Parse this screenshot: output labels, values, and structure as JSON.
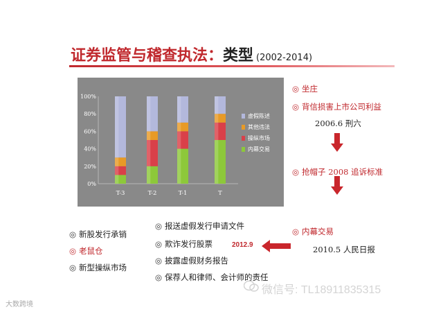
{
  "title": {
    "main": "证券监管与稽查执法：",
    "sub": "类型",
    "years": "(2002-2014)"
  },
  "colors": {
    "accent": "#c0282d",
    "chart_bg": "#898989",
    "series": [
      "#8dc83a",
      "#d94049",
      "#e89a26",
      "#b3b8dc"
    ]
  },
  "chart_data": {
    "type": "bar",
    "stacked": true,
    "categories": [
      "T-3",
      "T-2",
      "T-1",
      "T"
    ],
    "yticks": [
      "0%",
      "20%",
      "40%",
      "60%",
      "80%",
      "100%"
    ],
    "ylim": [
      0,
      100
    ],
    "legend_position": "right",
    "series": [
      {
        "name": "内幕交易",
        "values": [
          10,
          20,
          40,
          50
        ]
      },
      {
        "name": "操纵市场",
        "values": [
          10,
          30,
          20,
          20
        ]
      },
      {
        "name": "其他违法",
        "values": [
          10,
          10,
          10,
          10
        ]
      },
      {
        "name": "虚假陈述",
        "values": [
          70,
          40,
          30,
          20
        ]
      }
    ],
    "legend_order": [
      "虚假陈述",
      "其他违法",
      "操纵市场",
      "内幕交易"
    ]
  },
  "right_column": {
    "item1": "坐庄",
    "item2": "背信损害上市公司利益",
    "note1": "2006.6  刑六",
    "item3": "抢帽子 2008 追诉标准",
    "item4": "内幕交易",
    "note2": "2010.5 人民日报"
  },
  "middle_column": [
    "报送虚假发行申请文件",
    "欺诈发行股票",
    "披露虚假财务报告",
    "保荐人和律师、会计师的责任"
  ],
  "left_column": [
    "新股发行承销",
    "老鼠仓",
    "新型操纵市场"
  ],
  "arrow_label": "2012.9",
  "bullet": "◎",
  "watermark": "微信号: TL18911835315",
  "corner_text": "大数跨境"
}
